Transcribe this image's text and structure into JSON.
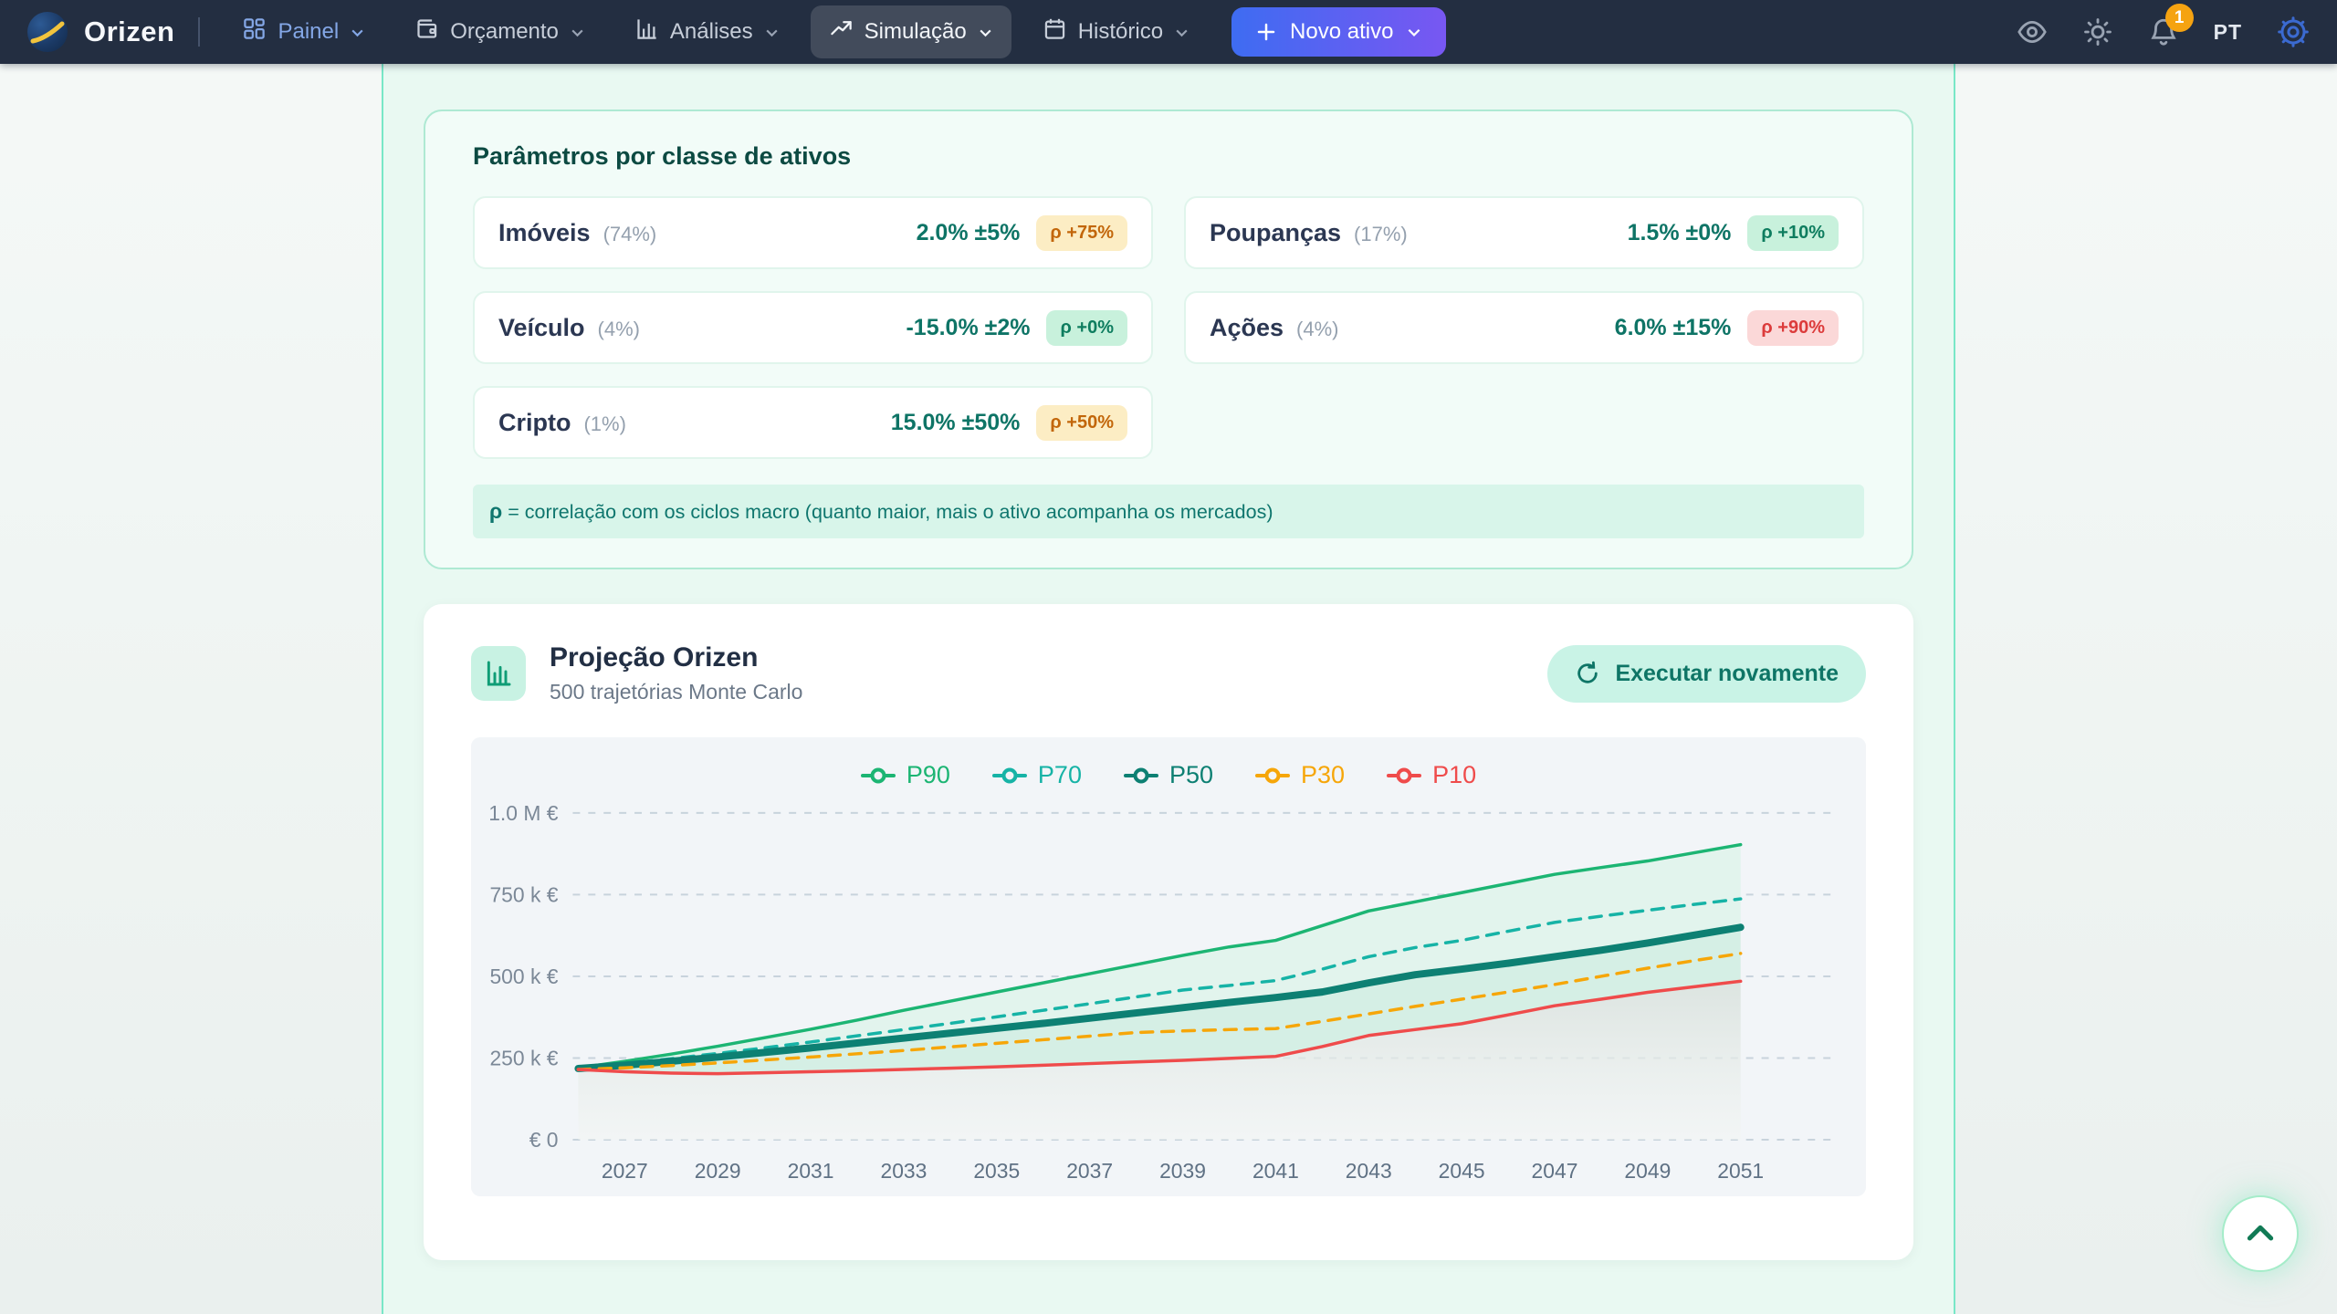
{
  "navbar": {
    "brand": "Orizen",
    "items": [
      {
        "label": "Painel",
        "icon": "dashboard-grid-icon"
      },
      {
        "label": "Orçamento",
        "icon": "wallet-icon"
      },
      {
        "label": "Análises",
        "icon": "bar-chart-icon"
      },
      {
        "label": "Simulação",
        "icon": "trend-up-icon",
        "active": true
      },
      {
        "label": "Histórico",
        "icon": "calendar-icon"
      }
    ],
    "new_asset_label": "Novo ativo",
    "notification_count": "1",
    "language": "PT"
  },
  "parameters": {
    "title": "Parâmetros por classe de ativos",
    "assets": [
      {
        "name": "Imóveis",
        "weight": "(74%)",
        "return": "2.0% ±5%",
        "rho": "ρ +75%",
        "rho_variant": "amber"
      },
      {
        "name": "Poupanças",
        "weight": "(17%)",
        "return": "1.5% ±0%",
        "rho": "ρ +10%",
        "rho_variant": "green"
      },
      {
        "name": "Veículo",
        "weight": "(4%)",
        "return": "-15.0% ±2%",
        "rho": "ρ +0%",
        "rho_variant": "green"
      },
      {
        "name": "Ações",
        "weight": "(4%)",
        "return": "6.0% ±15%",
        "rho": "ρ +90%",
        "rho_variant": "red"
      },
      {
        "name": "Cripto",
        "weight": "(1%)",
        "return": "15.0% ±50%",
        "rho": "ρ +50%",
        "rho_variant": "amber"
      }
    ],
    "footnote_symbol": "ρ",
    "footnote_text": " = correlação com os ciclos macro (quanto maior, mais o ativo acompanha os mercados)"
  },
  "projection": {
    "title": "Projeção Orizen",
    "subtitle": "500 trajetórias Monte Carlo",
    "run_button": "Executar novamente"
  },
  "chart_data": {
    "type": "line",
    "title": "Projeção Orizen — percentis Monte Carlo",
    "x": [
      2026,
      2027,
      2028,
      2029,
      2030,
      2031,
      2032,
      2033,
      2034,
      2035,
      2036,
      2037,
      2038,
      2039,
      2040,
      2041,
      2042,
      2043,
      2044,
      2045,
      2046,
      2047,
      2048,
      2049,
      2050,
      2051
    ],
    "x_ticks": [
      2027,
      2029,
      2031,
      2033,
      2035,
      2037,
      2039,
      2041,
      2043,
      2045,
      2047,
      2049,
      2051
    ],
    "unit": "k€",
    "ylim_keur": [
      0,
      1000
    ],
    "grid": "dashed-horizontal",
    "legend_position": "top",
    "y_ticks": [
      {
        "value_keur": 0,
        "label": "€ 0"
      },
      {
        "value_keur": 250,
        "label": "250 k €"
      },
      {
        "value_keur": 500,
        "label": "500 k €"
      },
      {
        "value_keur": 750,
        "label": "750 k €"
      },
      {
        "value_keur": 1000,
        "label": "1.0 M €"
      }
    ],
    "series": [
      {
        "name": "P90",
        "color": "#1cb573",
        "width": 3.5,
        "dash": null,
        "values_keur": [
          220,
          240,
          262,
          286,
          312,
          338,
          366,
          396,
          424,
          452,
          480,
          508,
          536,
          564,
          590,
          610,
          655,
          700,
          728,
          756,
          784,
          812,
          833,
          853,
          878,
          903
        ]
      },
      {
        "name": "P70",
        "color": "#16b3a6",
        "width": 3.5,
        "dash": "13 10",
        "values_keur": [
          220,
          233,
          248,
          264,
          281,
          299,
          318,
          337,
          356,
          376,
          396,
          416,
          437,
          458,
          472,
          487,
          522,
          560,
          588,
          610,
          638,
          665,
          684,
          702,
          720,
          737
        ]
      },
      {
        "name": "P50",
        "color": "#0d8073",
        "width": 8,
        "dash": null,
        "values_keur": [
          218,
          228,
          240,
          253,
          267,
          281,
          296,
          311,
          326,
          341,
          356,
          372,
          388,
          404,
          420,
          435,
          452,
          480,
          505,
          522,
          540,
          560,
          580,
          602,
          626,
          650
        ]
      },
      {
        "name": "P30",
        "color": "#f6a609",
        "width": 3.5,
        "dash": "13 10",
        "values_keur": [
          215,
          220,
          227,
          235,
          244,
          253,
          263,
          273,
          284,
          295,
          306,
          317,
          328,
          333,
          337,
          340,
          362,
          385,
          408,
          430,
          452,
          475,
          500,
          525,
          548,
          570
        ]
      },
      {
        "name": "P10",
        "color": "#ef4b4b",
        "width": 3.5,
        "dash": null,
        "values_keur": [
          215,
          208,
          204,
          202,
          205,
          208,
          211,
          215,
          219,
          223,
          228,
          233,
          238,
          243,
          249,
          255,
          285,
          319,
          337,
          355,
          382,
          410,
          430,
          451,
          468,
          485
        ]
      }
    ]
  }
}
